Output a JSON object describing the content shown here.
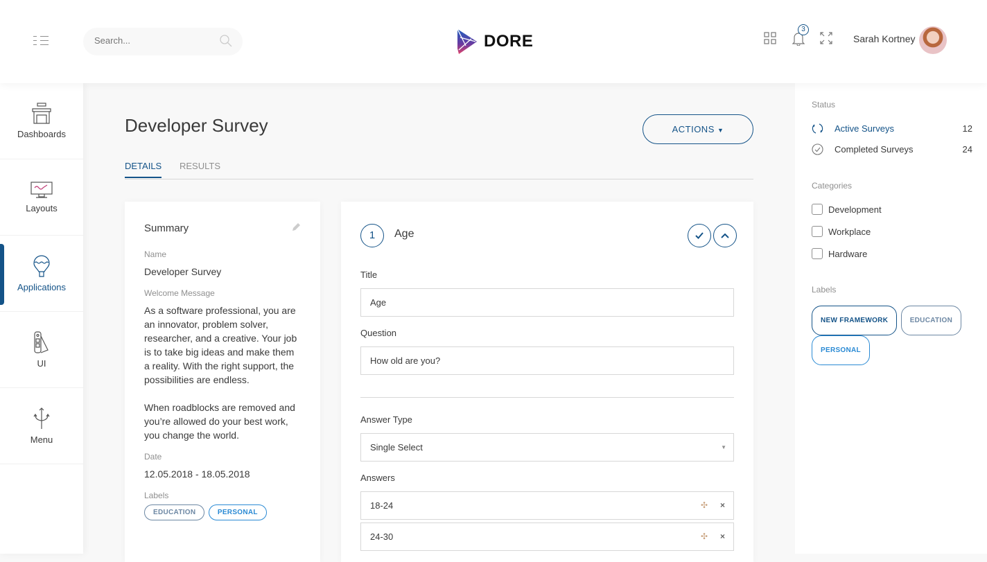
{
  "header": {
    "search_placeholder": "Search...",
    "logo_text": "DORE",
    "notification_count": "3",
    "user_name": "Sarah Kortney"
  },
  "sidebar": {
    "items": [
      {
        "label": "Dashboards",
        "icon": "shop-icon"
      },
      {
        "label": "Layouts",
        "icon": "monitor-icon"
      },
      {
        "label": "Applications",
        "icon": "balloon-icon",
        "active": true
      },
      {
        "label": "UI",
        "icon": "palette-icon"
      },
      {
        "label": "Menu",
        "icon": "trident-icon"
      }
    ]
  },
  "page": {
    "title": "Developer Survey",
    "actions_label": "ACTIONS",
    "tabs": [
      {
        "label": "DETAILS",
        "active": true
      },
      {
        "label": "RESULTS"
      }
    ]
  },
  "summary": {
    "heading": "Summary",
    "name_label": "Name",
    "name": "Developer Survey",
    "welcome_label": "Welcome Message",
    "welcome_p1": "As a software professional, you are an innovator, problem solver, researcher, and a creative. Your job is to take big ideas and make them a reality. With the right support, the possibilities are endless.",
    "welcome_p2": "When roadblocks are removed and you’re allowed do your best work, you change the world.",
    "date_label": "Date",
    "date": "12.05.2018 - 18.05.2018",
    "labels_label": "Labels",
    "labels": [
      "EDUCATION",
      "PERSONAL"
    ]
  },
  "question": {
    "number": "1",
    "title": "Age",
    "title_label": "Title",
    "title_value": "Age",
    "question_label": "Question",
    "question_value": "How old are you?",
    "answer_type_label": "Answer Type",
    "answer_type": "Single Select",
    "answers_label": "Answers",
    "answers": [
      "18-24",
      "24-30"
    ]
  },
  "right_panel": {
    "status_heading": "Status",
    "status": [
      {
        "label": "Active Surveys",
        "count": "12"
      },
      {
        "label": "Completed Surveys",
        "count": "24"
      }
    ],
    "categories_heading": "Categories",
    "categories": [
      "Development",
      "Workplace",
      "Hardware"
    ],
    "labels_heading": "Labels",
    "labels": [
      "NEW FRAMEWORK",
      "EDUCATION",
      "PERSONAL"
    ]
  },
  "colors": {
    "primary": "#145388",
    "tag_education": "#6c87a3",
    "tag_personal": "#2a8ad4"
  }
}
